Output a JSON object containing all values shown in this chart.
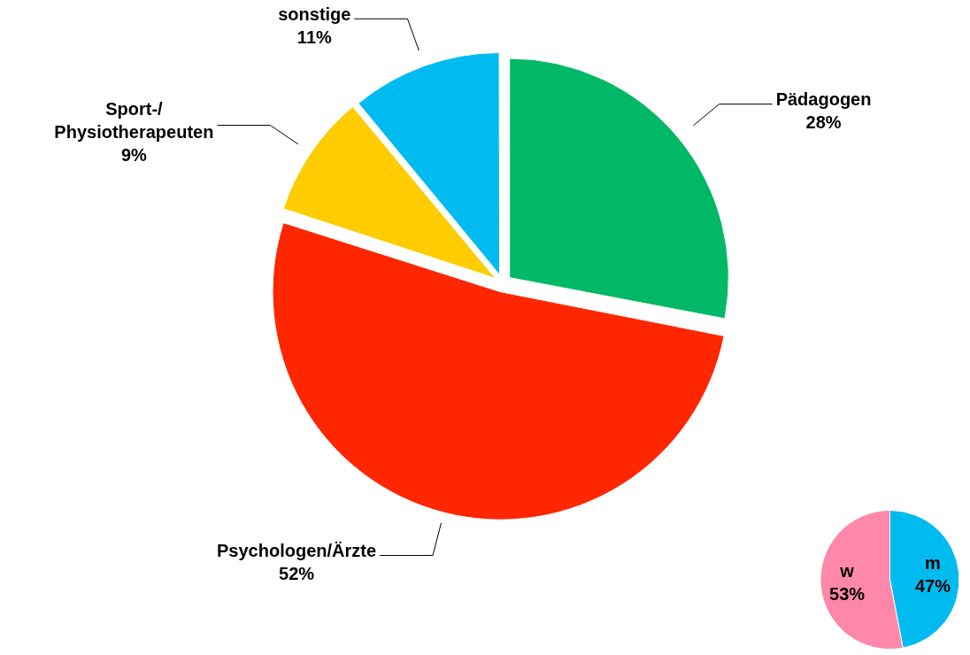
{
  "chart_data": [
    {
      "type": "pie",
      "categories": [
        "Pädagogen",
        "Psychologen/Ärzte",
        "Sport-/\nPhysiotherapeuten",
        "sonstige"
      ],
      "values": [
        28,
        52,
        9,
        11
      ],
      "value_labels": [
        "28%",
        "52%",
        "9%",
        "11%"
      ],
      "colors": [
        "#00b865",
        "#ff2600",
        "#ffcc00",
        "#00bbf0"
      ],
      "legend": false
    },
    {
      "type": "pie",
      "categories": [
        "m",
        "w"
      ],
      "values": [
        47,
        53
      ],
      "value_labels": [
        "47%",
        "53%"
      ],
      "colors": [
        "#00bbf0",
        "#ff88aa"
      ],
      "legend": false
    }
  ]
}
